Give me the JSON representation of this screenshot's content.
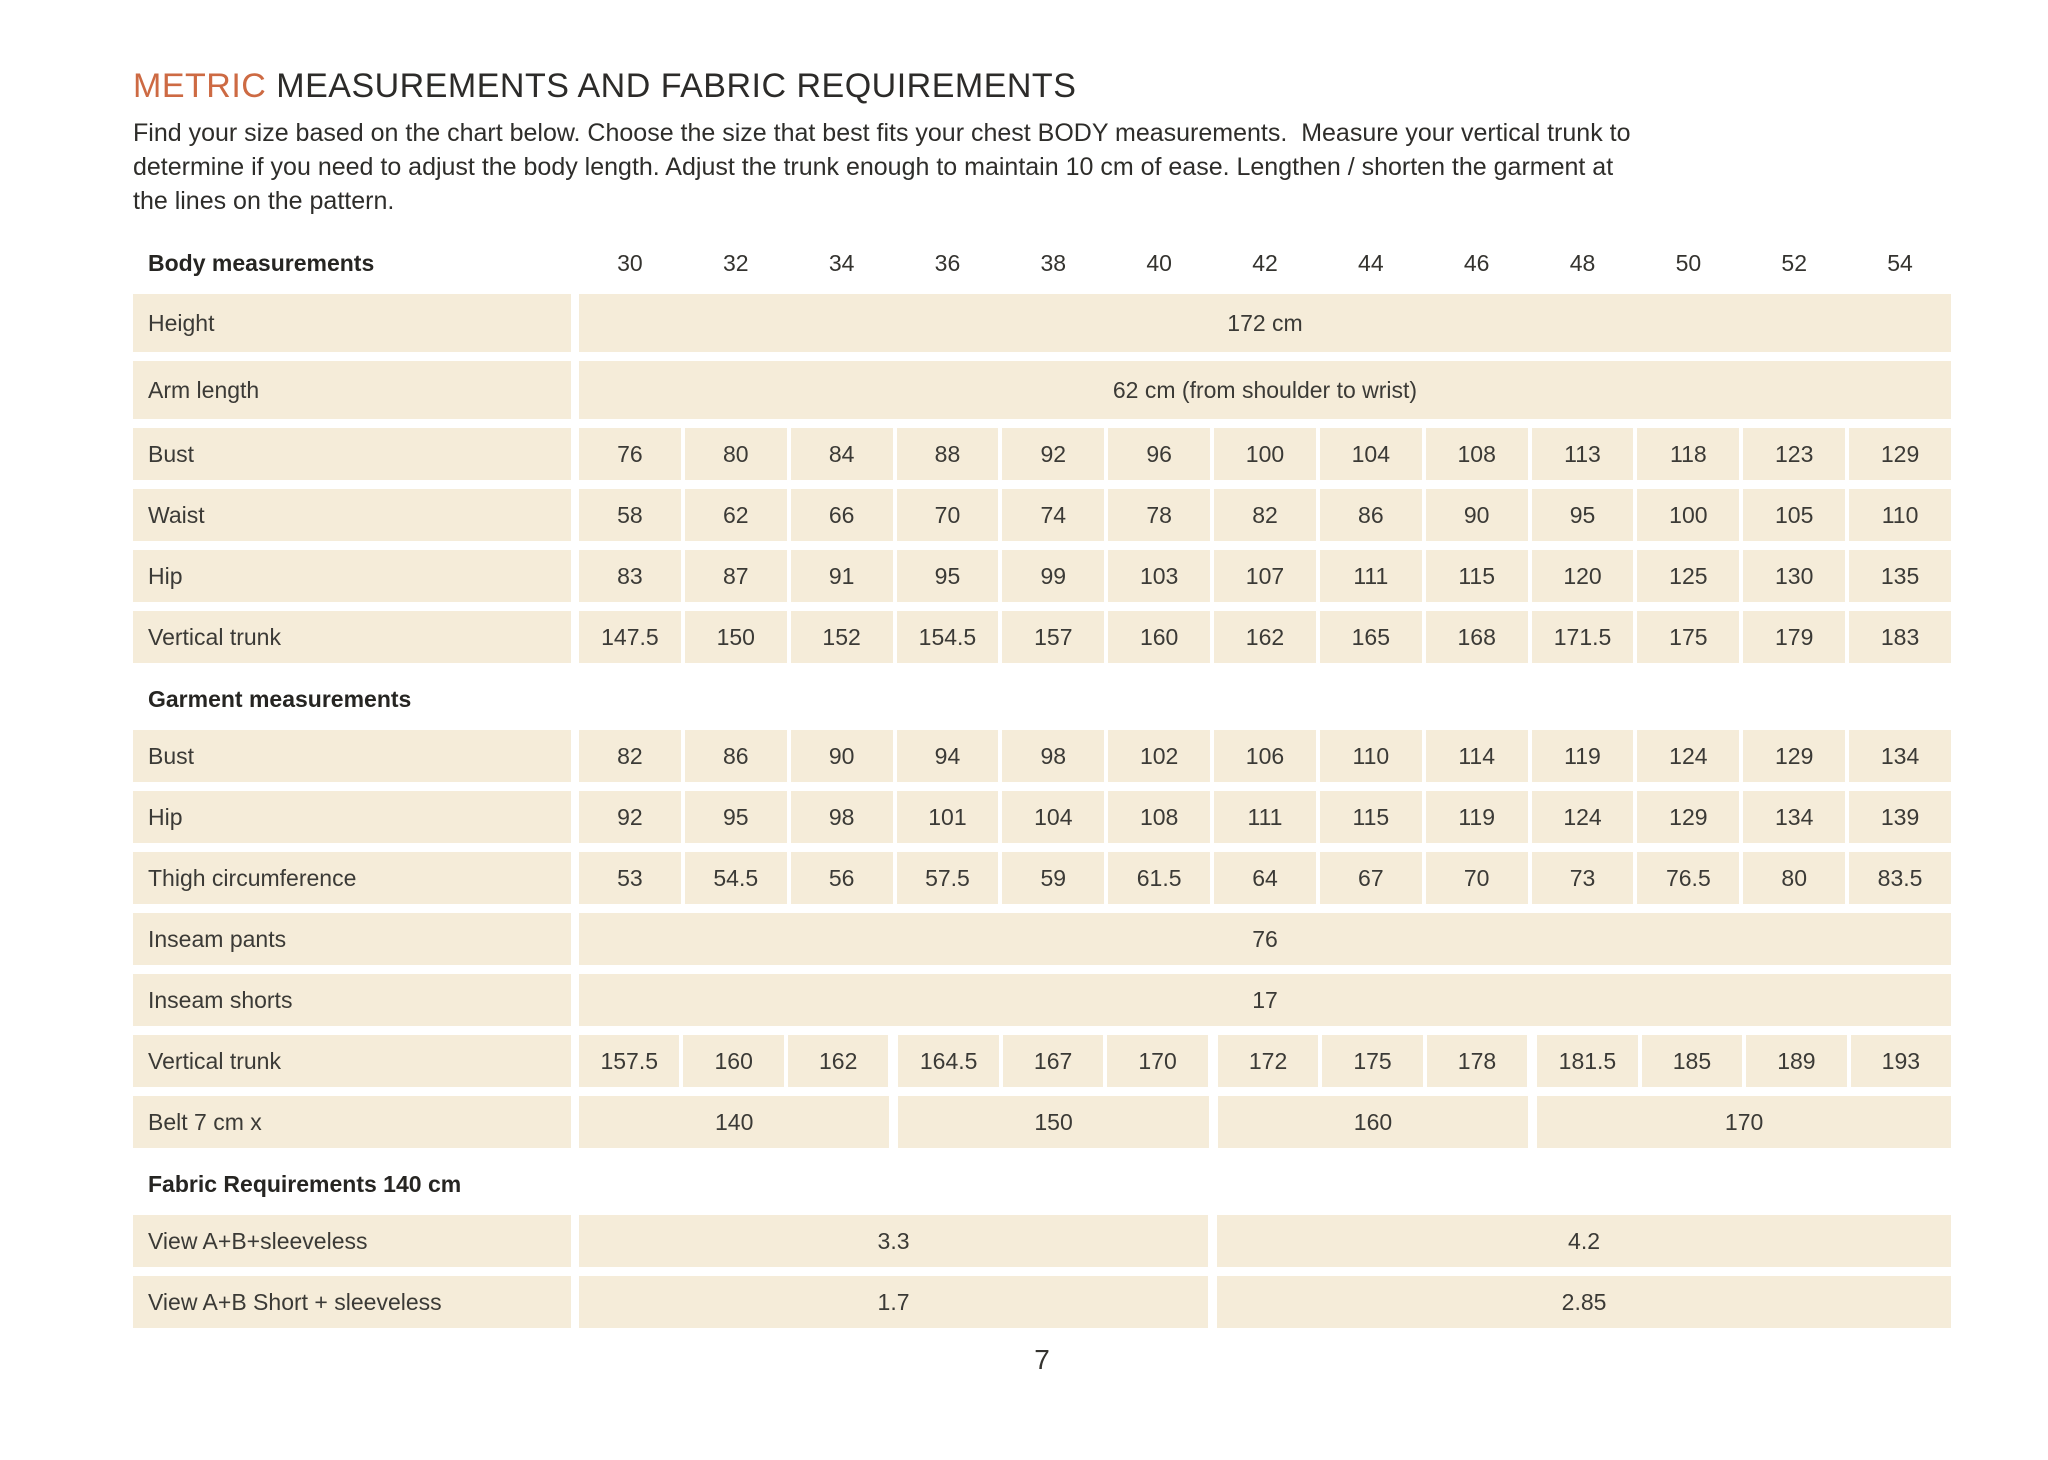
{
  "page": {
    "title_accent": "METRIC",
    "title_rest": " MEASUREMENTS AND FABRIC REQUIREMENTS",
    "intro_lines": [
      "Find your size based on the chart below. Choose the size that best fits your chest BODY measurements.  Measure your vertical trunk to",
      "determine if you need to adjust the body length. Adjust the trunk enough to maintain 10 cm of ease. Lengthen / shorten the garment at",
      "the lines on the pattern."
    ],
    "page_number": "7"
  },
  "colors": {
    "accent": "#cd6a43",
    "row_background": "#f5ecd9",
    "text": "#2b2a27"
  },
  "table": {
    "column_header_label": "Body measurements",
    "sizes": [
      "30",
      "32",
      "34",
      "36",
      "38",
      "40",
      "42",
      "44",
      "46",
      "48",
      "50",
      "52",
      "54"
    ],
    "sections": [
      {
        "rows": [
          {
            "label": "Height",
            "type": "span",
            "value": "172 cm",
            "tall": true
          },
          {
            "label": "Arm length",
            "type": "span",
            "value": "62 cm (from shoulder to wrist)",
            "tall": true
          },
          {
            "label": "Bust",
            "type": "cells",
            "values": [
              "76",
              "80",
              "84",
              "88",
              "92",
              "96",
              "100",
              "104",
              "108",
              "113",
              "118",
              "123",
              "129"
            ]
          },
          {
            "label": "Waist",
            "type": "cells",
            "values": [
              "58",
              "62",
              "66",
              "70",
              "74",
              "78",
              "82",
              "86",
              "90",
              "95",
              "100",
              "105",
              "110"
            ]
          },
          {
            "label": "Hip",
            "type": "cells",
            "values": [
              "83",
              "87",
              "91",
              "95",
              "99",
              "103",
              "107",
              "111",
              "115",
              "120",
              "125",
              "130",
              "135"
            ]
          },
          {
            "label": "Vertical trunk",
            "type": "cells",
            "values": [
              "147.5",
              "150",
              "152",
              "154.5",
              "157",
              "160",
              "162",
              "165",
              "168",
              "171.5",
              "175",
              "179",
              "183"
            ]
          }
        ]
      },
      {
        "header": "Garment measurements",
        "rows": [
          {
            "label": "Bust",
            "type": "cells",
            "values": [
              "82",
              "86",
              "90",
              "94",
              "98",
              "102",
              "106",
              "110",
              "114",
              "119",
              "124",
              "129",
              "134"
            ]
          },
          {
            "label": "Hip",
            "type": "cells",
            "values": [
              "92",
              "95",
              "98",
              "101",
              "104",
              "108",
              "111",
              "115",
              "119",
              "124",
              "129",
              "134",
              "139"
            ]
          },
          {
            "label": "Thigh circumference",
            "type": "cells",
            "values": [
              "53",
              "54.5",
              "56",
              "57.5",
              "59",
              "61.5",
              "64",
              "67",
              "70",
              "73",
              "76.5",
              "80",
              "83.5"
            ]
          },
          {
            "label": "Inseam pants",
            "type": "span",
            "value": "76"
          },
          {
            "label": "Inseam shorts",
            "type": "span",
            "value": "17"
          },
          {
            "label": "Vertical trunk",
            "type": "cells",
            "group_after": [
              2,
              5,
              8
            ],
            "values": [
              "157.5",
              "160",
              "162",
              "164.5",
              "167",
              "170",
              "172",
              "175",
              "178",
              "181.5",
              "185",
              "189",
              "193"
            ]
          },
          {
            "label": "Belt 7 cm x",
            "type": "groups",
            "groups": [
              {
                "span": 3,
                "value": "140"
              },
              {
                "span": 3,
                "value": "150"
              },
              {
                "span": 3,
                "value": "160"
              },
              {
                "span": 4,
                "value": "170"
              }
            ]
          }
        ]
      },
      {
        "header": "Fabric Requirements 140 cm",
        "rows": [
          {
            "label": "View A+B+sleeveless",
            "type": "groups",
            "groups": [
              {
                "span": 6,
                "value": "3.3"
              },
              {
                "span": 7,
                "value": "4.2"
              }
            ]
          },
          {
            "label": "View A+B Short + sleeveless",
            "type": "groups",
            "groups": [
              {
                "span": 6,
                "value": "1.7"
              },
              {
                "span": 7,
                "value": "2.85"
              }
            ]
          }
        ]
      }
    ]
  }
}
